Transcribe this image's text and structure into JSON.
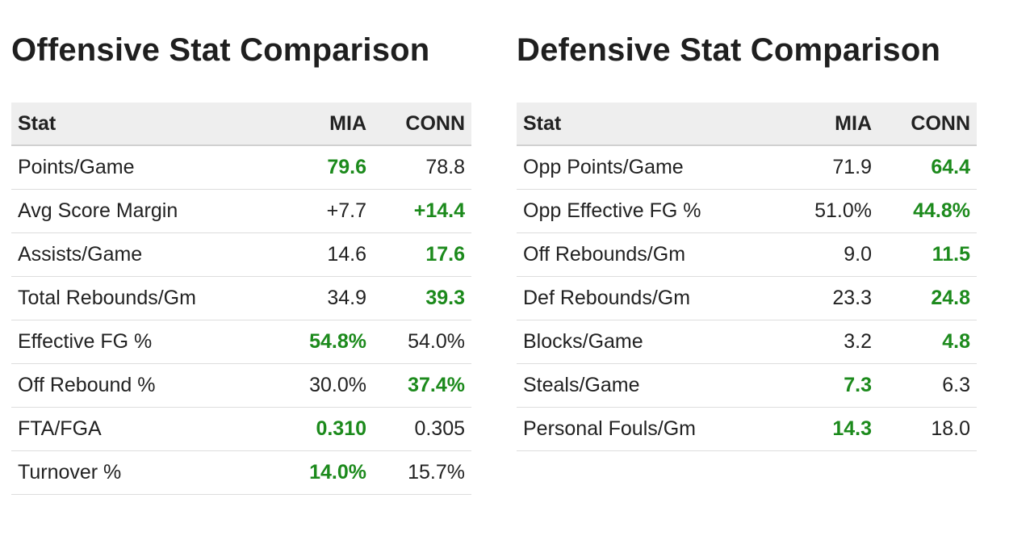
{
  "offensive": {
    "title": "Offensive Stat Comparison",
    "headers": {
      "stat": "Stat",
      "team1": "MIA",
      "team2": "CONN"
    },
    "rows": [
      {
        "stat": "Points/Game",
        "mia": "79.6",
        "conn": "78.8",
        "leader": "mia"
      },
      {
        "stat": "Avg Score Margin",
        "mia": "+7.7",
        "conn": "+14.4",
        "leader": "conn"
      },
      {
        "stat": "Assists/Game",
        "mia": "14.6",
        "conn": "17.6",
        "leader": "conn"
      },
      {
        "stat": "Total Rebounds/Gm",
        "mia": "34.9",
        "conn": "39.3",
        "leader": "conn"
      },
      {
        "stat": "Effective FG %",
        "mia": "54.8%",
        "conn": "54.0%",
        "leader": "mia"
      },
      {
        "stat": "Off Rebound %",
        "mia": "30.0%",
        "conn": "37.4%",
        "leader": "conn"
      },
      {
        "stat": "FTA/FGA",
        "mia": "0.310",
        "conn": "0.305",
        "leader": "mia"
      },
      {
        "stat": "Turnover %",
        "mia": "14.0%",
        "conn": "15.7%",
        "leader": "mia"
      }
    ]
  },
  "defensive": {
    "title": "Defensive Stat Comparison",
    "headers": {
      "stat": "Stat",
      "team1": "MIA",
      "team2": "CONN"
    },
    "rows": [
      {
        "stat": "Opp Points/Game",
        "mia": "71.9",
        "conn": "64.4",
        "leader": "conn"
      },
      {
        "stat": "Opp Effective FG %",
        "mia": "51.0%",
        "conn": "44.8%",
        "leader": "conn"
      },
      {
        "stat": "Off Rebounds/Gm",
        "mia": "9.0",
        "conn": "11.5",
        "leader": "conn"
      },
      {
        "stat": "Def Rebounds/Gm",
        "mia": "23.3",
        "conn": "24.8",
        "leader": "conn"
      },
      {
        "stat": "Blocks/Game",
        "mia": "3.2",
        "conn": "4.8",
        "leader": "conn"
      },
      {
        "stat": "Steals/Game",
        "mia": "7.3",
        "conn": "6.3",
        "leader": "mia"
      },
      {
        "stat": "Personal Fouls/Gm",
        "mia": "14.3",
        "conn": "18.0",
        "leader": "mia"
      }
    ]
  },
  "colors": {
    "leader_text": "#1c8a1c",
    "header_bg": "#eeeeee",
    "text": "#222222"
  }
}
